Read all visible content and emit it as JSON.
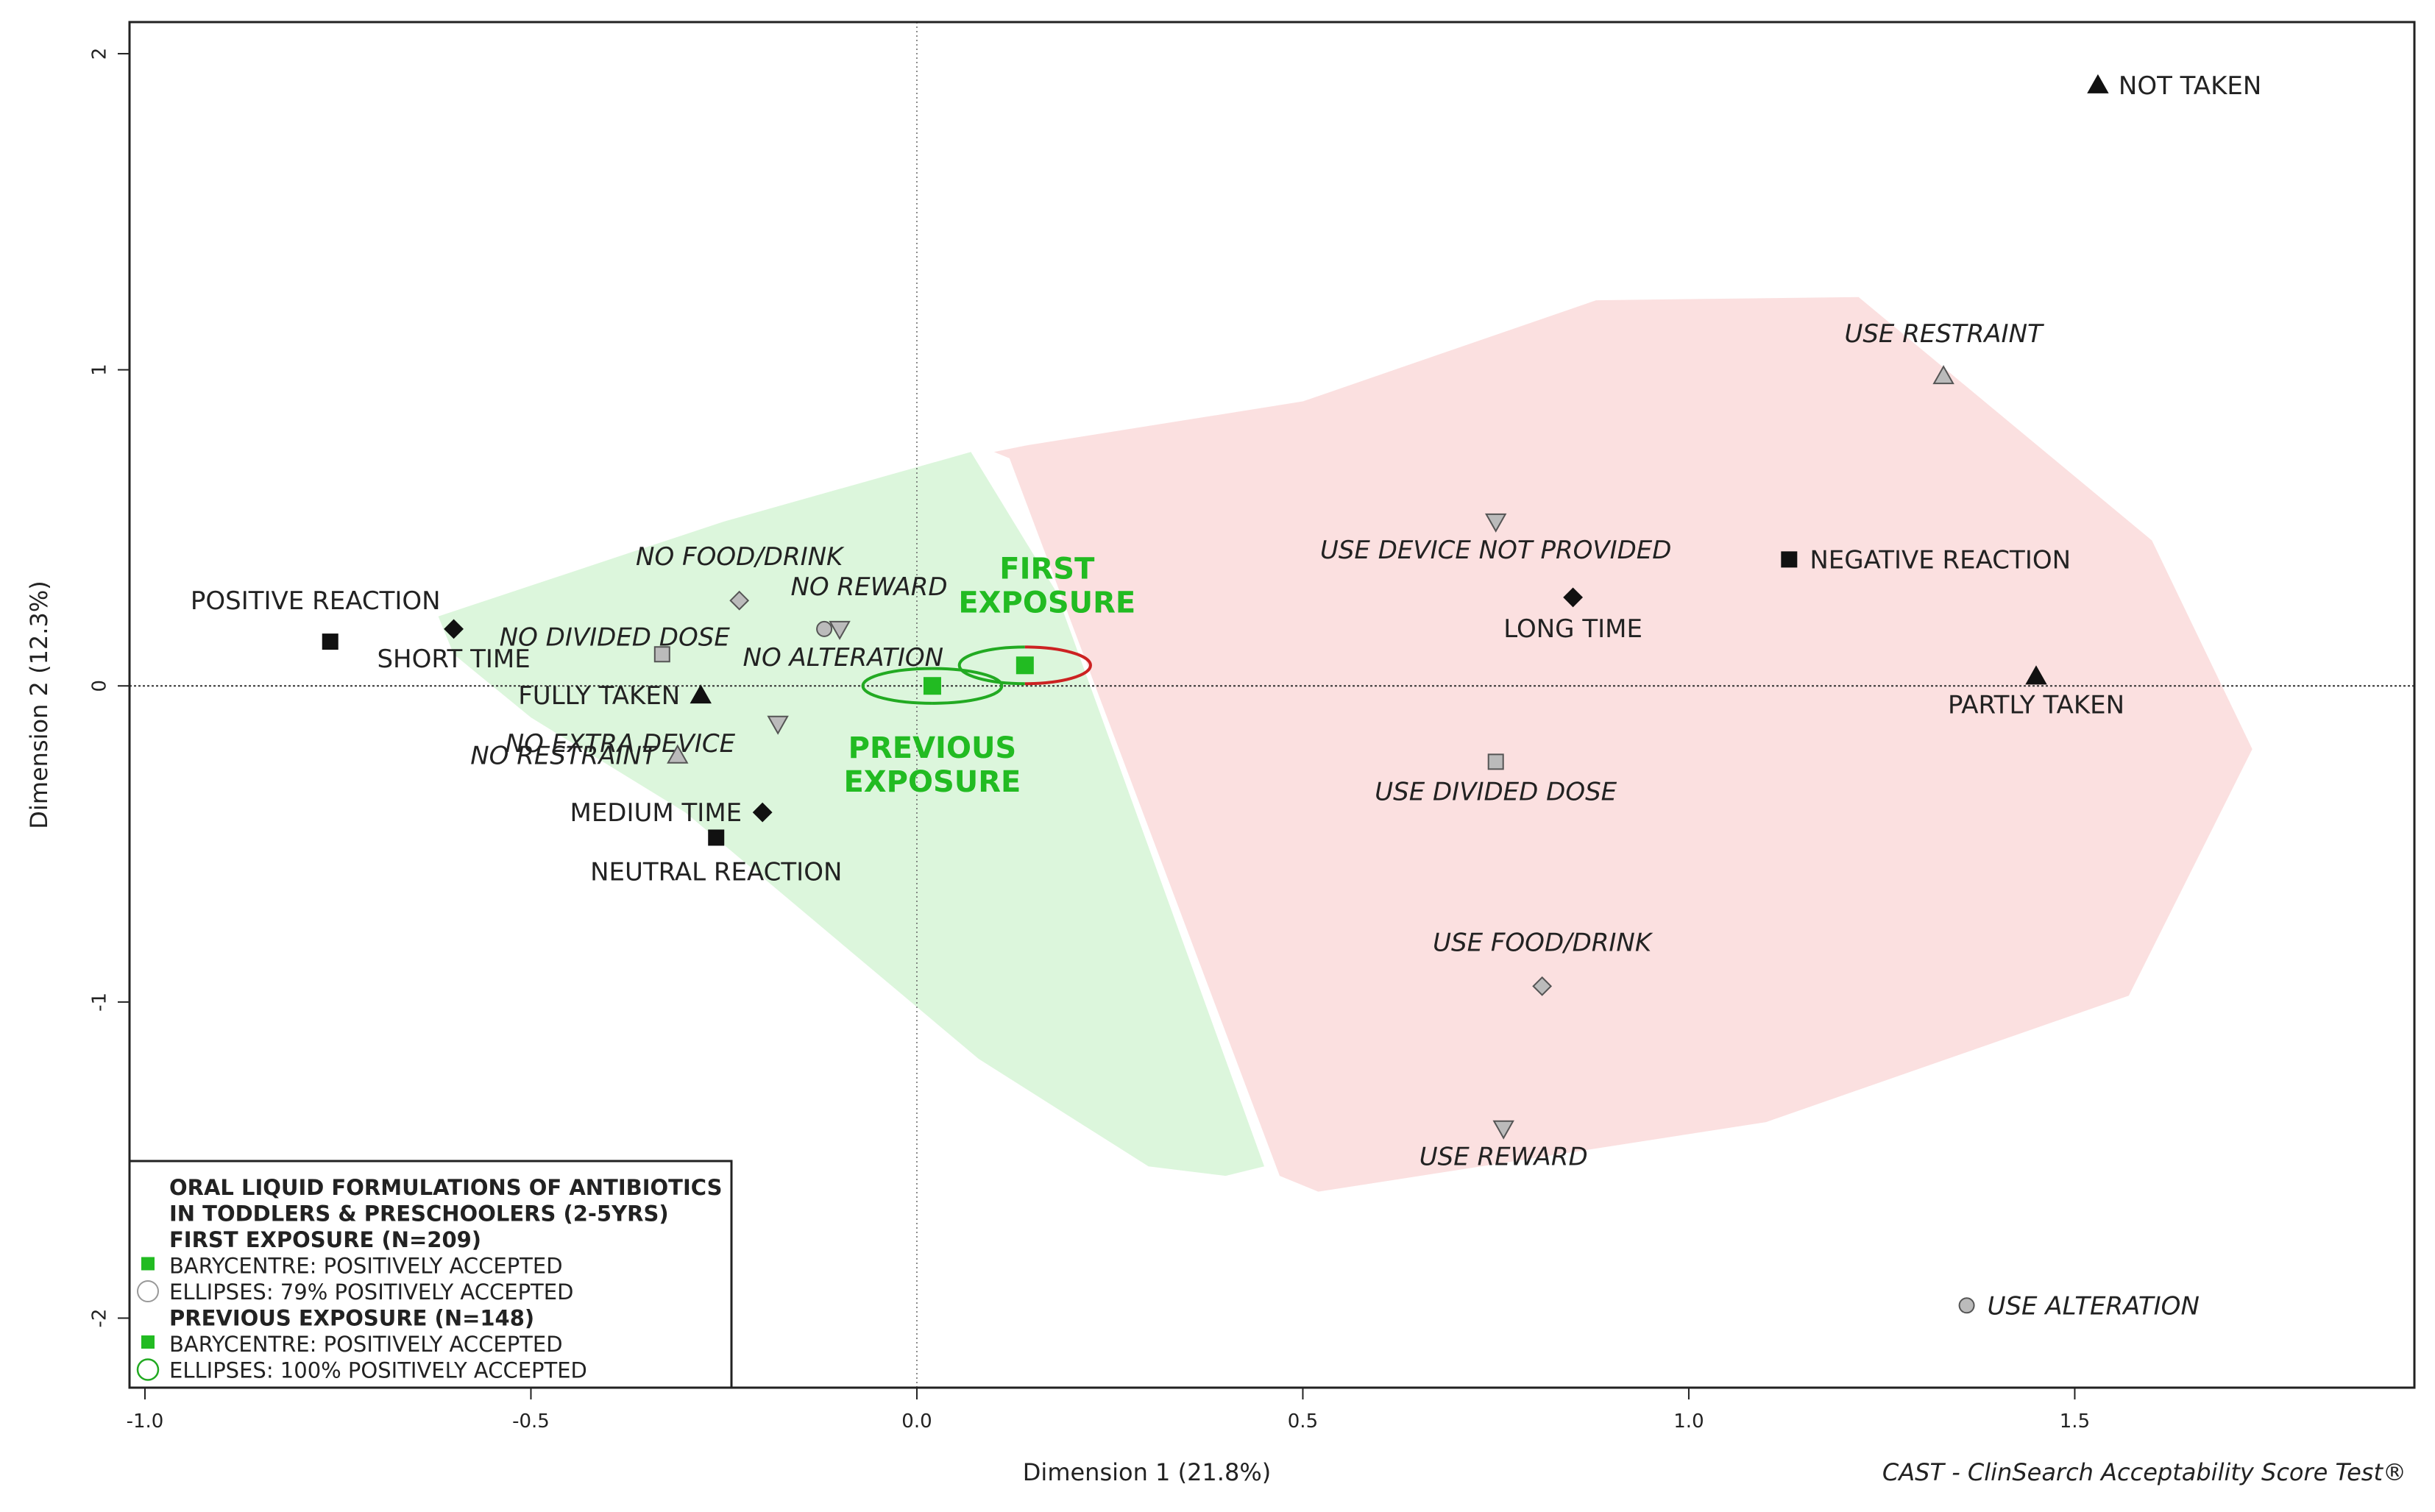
{
  "chart_data": {
    "type": "scatter",
    "title": "",
    "xlabel": "Dimension 1 (21.8%)",
    "ylabel": "Dimension 2 (12.3%)",
    "xlim": [
      -1.02,
      1.94
    ],
    "ylim": [
      -2.22,
      2.1
    ],
    "x_ticks": [
      -1.0,
      -0.5,
      0.0,
      0.5,
      1.0,
      1.5
    ],
    "x_tick_labels": [
      "-1.0",
      "-0.5",
      "0.0",
      "0.5",
      "1.0",
      "1.5"
    ],
    "y_ticks": [
      -2,
      -1,
      0,
      1,
      2
    ],
    "y_tick_labels": [
      "-2",
      "-1",
      "0",
      "1",
      "2"
    ],
    "reference_lines": {
      "x": 0,
      "y": 0
    },
    "regions": [
      {
        "name": "positively-accepted",
        "color": "#d6f5d6",
        "polygon": [
          [
            -0.62,
            0.22
          ],
          [
            -0.25,
            0.52
          ],
          [
            0.07,
            0.74
          ],
          [
            0.18,
            0.3
          ],
          [
            0.45,
            -1.52
          ],
          [
            0.4,
            -1.55
          ],
          [
            0.3,
            -1.52
          ],
          [
            0.08,
            -1.18
          ],
          [
            -0.3,
            -0.4
          ],
          [
            -0.5,
            -0.1
          ],
          [
            -0.6,
            0.1
          ]
        ]
      },
      {
        "name": "negatively-accepted",
        "color": "#fadbdb",
        "polygon": [
          [
            0.1,
            0.74
          ],
          [
            0.14,
            0.76
          ],
          [
            0.5,
            0.9
          ],
          [
            0.88,
            1.22
          ],
          [
            1.22,
            1.23
          ],
          [
            1.6,
            0.46
          ],
          [
            1.73,
            -0.2
          ],
          [
            1.57,
            -0.98
          ],
          [
            1.1,
            -1.38
          ],
          [
            0.52,
            -1.6
          ],
          [
            0.47,
            -1.55
          ],
          [
            0.12,
            0.72
          ]
        ]
      }
    ],
    "ellipses": [
      {
        "name": "first-exposure-ellipse",
        "cx": 0.14,
        "cy": 0.065,
        "rx": 0.085,
        "ry": 0.058,
        "color_left": "#22aa22",
        "color_right": "#cc2222"
      },
      {
        "name": "previous-exposure-ellipse",
        "cx": 0.02,
        "cy": 0.0,
        "rx": 0.09,
        "ry": 0.055,
        "color_left": "#22aa22",
        "color_right": "#22aa22"
      }
    ],
    "barycentres": [
      {
        "name": "first-exposure",
        "x": 0.14,
        "y": 0.065,
        "color": "#22bb22",
        "label_lines": [
          "FIRST",
          "EXPOSURE"
        ]
      },
      {
        "name": "previous-exposure",
        "x": 0.02,
        "y": 0.0,
        "color": "#22bb22",
        "label_lines": [
          "PREVIOUS",
          "EXPOSURE"
        ]
      }
    ],
    "points": [
      {
        "label": "NOT TAKEN",
        "x": 1.53,
        "y": 1.9,
        "marker": "triangle",
        "color": "#111111",
        "italic": false
      },
      {
        "label": "USE RESTRAINT",
        "x": 1.33,
        "y": 0.98,
        "marker": "triangle",
        "color": "#bbbbbb",
        "italic": true
      },
      {
        "label": "USE DEVICE NOT PROVIDED",
        "x": 0.75,
        "y": 0.52,
        "marker": "triangle-down",
        "color": "#bbbbbb",
        "italic": true
      },
      {
        "label": "NEGATIVE REACTION",
        "x": 1.13,
        "y": 0.4,
        "marker": "square",
        "color": "#111111",
        "italic": false
      },
      {
        "label": "LONG TIME",
        "x": 0.85,
        "y": 0.28,
        "marker": "diamond",
        "color": "#111111",
        "italic": false
      },
      {
        "label": "PARTLY TAKEN",
        "x": 1.45,
        "y": 0.03,
        "marker": "triangle",
        "color": "#111111",
        "italic": false
      },
      {
        "label": "USE DIVIDED DOSE",
        "x": 0.75,
        "y": -0.24,
        "marker": "square",
        "color": "#bbbbbb",
        "italic": true
      },
      {
        "label": "USE FOOD/DRINK",
        "x": 0.81,
        "y": -0.95,
        "marker": "diamond",
        "color": "#bbbbbb",
        "italic": true
      },
      {
        "label": "USE REWARD",
        "x": 0.76,
        "y": -1.4,
        "marker": "triangle-down",
        "color": "#bbbbbb",
        "italic": true
      },
      {
        "label": "USE ALTERATION",
        "x": 1.36,
        "y": -1.96,
        "marker": "circle",
        "color": "#bbbbbb",
        "italic": true
      },
      {
        "label": "POSITIVE REACTION",
        "x": -0.76,
        "y": 0.14,
        "marker": "square",
        "color": "#111111",
        "italic": false
      },
      {
        "label": "SHORT TIME",
        "x": -0.6,
        "y": 0.18,
        "marker": "diamond",
        "color": "#111111",
        "italic": false
      },
      {
        "label": "NO FOOD/DRINK",
        "x": -0.23,
        "y": 0.27,
        "marker": "diamond",
        "color": "#bbbbbb",
        "italic": true
      },
      {
        "label": "NO REWARD",
        "x": -0.1,
        "y": 0.18,
        "marker": "triangle-down",
        "color": "#bbbbbb",
        "italic": true
      },
      {
        "label": "NO DIVIDED DOSE",
        "x": -0.33,
        "y": 0.1,
        "marker": "square",
        "color": "#bbbbbb",
        "italic": true
      },
      {
        "label": "NO ALTERATION",
        "x": -0.12,
        "y": 0.18,
        "marker": "circle",
        "color": "#bbbbbb",
        "italic": true
      },
      {
        "label": "FULLY TAKEN",
        "x": -0.28,
        "y": -0.03,
        "marker": "triangle",
        "color": "#111111",
        "italic": false
      },
      {
        "label": "NO EXTRA DEVICE",
        "x": -0.18,
        "y": -0.12,
        "marker": "triangle-down",
        "color": "#bbbbbb",
        "italic": true
      },
      {
        "label": "NO RESTRAINT",
        "x": -0.31,
        "y": -0.22,
        "marker": "triangle",
        "color": "#bbbbbb",
        "italic": true
      },
      {
        "label": "MEDIUM TIME",
        "x": -0.2,
        "y": -0.4,
        "marker": "diamond",
        "color": "#111111",
        "italic": false
      },
      {
        "label": "NEUTRAL REACTION",
        "x": -0.26,
        "y": -0.48,
        "marker": "square",
        "color": "#111111",
        "italic": false
      }
    ],
    "legend": {
      "placement": "bottom-left",
      "lines": [
        {
          "text": "ORAL LIQUID FORMULATIONS OF ANTIBIOTICS",
          "bold": true,
          "symbol": "none"
        },
        {
          "text": "IN TODDLERS & PRESCHOOLERS (2-5YRS)",
          "bold": true,
          "symbol": "none"
        },
        {
          "text": "FIRST EXPOSURE (N=209)",
          "bold": true,
          "symbol": "none"
        },
        {
          "text": "BARYCENTRE: POSITIVELY ACCEPTED",
          "bold": false,
          "symbol": "square"
        },
        {
          "text": "ELLIPSES: 79% POSITIVELY ACCEPTED",
          "bold": false,
          "symbol": "ellipse-grey"
        },
        {
          "text": "PREVIOUS EXPOSURE (N=148)",
          "bold": true,
          "symbol": "none"
        },
        {
          "text": "BARYCENTRE: POSITIVELY ACCEPTED",
          "bold": false,
          "symbol": "square"
        },
        {
          "text": "ELLIPSES: 100% POSITIVELY ACCEPTED",
          "bold": false,
          "symbol": "ellipse-green"
        }
      ]
    },
    "credit": "CAST - ClinSearch Acceptability Score Test®"
  },
  "colors": {
    "barycentre": "#22bb22",
    "positive_region": "#d6f5d6",
    "negative_region": "#fadbdb",
    "ellipse_green": "#22aa22",
    "ellipse_red": "#cc2222"
  }
}
